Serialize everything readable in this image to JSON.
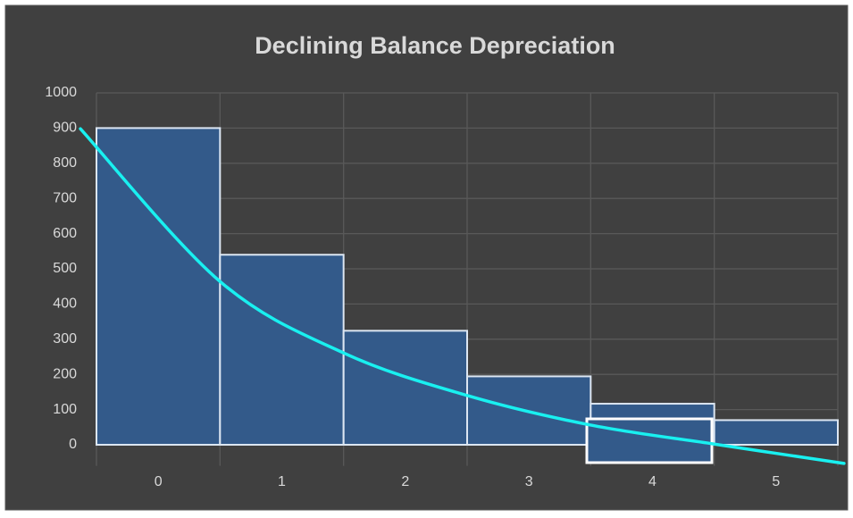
{
  "chart_data": {
    "type": "bar",
    "title": "Declining Balance Depreciation",
    "categories": [
      "0",
      "1",
      "2",
      "3",
      "4",
      "5"
    ],
    "values": [
      900,
      540,
      324,
      194.4,
      116.64,
      69.98
    ],
    "color": "#335a8a",
    "edge_color": "#dce6f2",
    "line": {
      "type": "line",
      "color": "#19f0f0",
      "x": [
        -0.63,
        0.5,
        1.5,
        2.5,
        3.5,
        4.5,
        5.55
      ],
      "values": [
        898,
        464,
        261,
        140,
        56,
        2,
        -53
      ]
    },
    "ylim": [
      -60,
      1000
    ],
    "yticks": [
      0,
      100,
      200,
      300,
      400,
      500,
      600,
      700,
      800,
      900,
      1000
    ],
    "grid": true
  }
}
